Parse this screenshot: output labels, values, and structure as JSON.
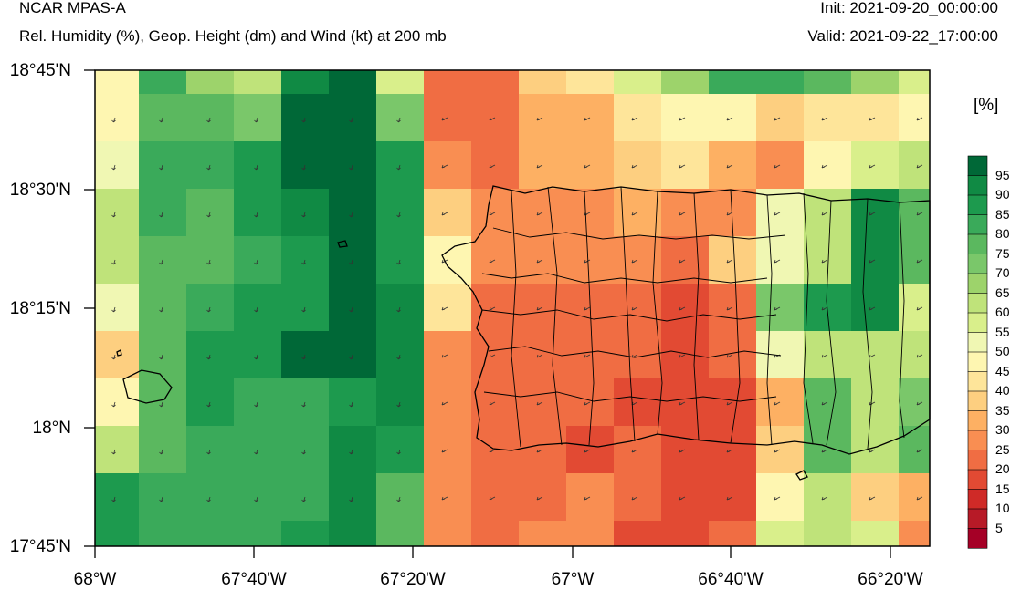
{
  "header": {
    "title": "NCAR MPAS-A",
    "subtitle": "Rel. Humidity (%), Geop. Height (dm) and Wind (kt) at 200 mb",
    "init": "Init: 2021-09-20_00:00:00",
    "valid": "Valid: 2021-09-22_17:00:00"
  },
  "axes": {
    "y_labels": [
      "18°45'N",
      "18°30'N",
      "18°15'N",
      "18°N",
      "17°45'N"
    ],
    "x_labels": [
      "68°W",
      "67°40'W",
      "67°20'W",
      "67°W",
      "66°40'W",
      "66°20'W"
    ]
  },
  "colorbar": {
    "unit": "[%]",
    "labels": [
      "95",
      "90",
      "85",
      "80",
      "75",
      "70",
      "65",
      "60",
      "55",
      "50",
      "45",
      "40",
      "35",
      "30",
      "25",
      "20",
      "15",
      "10",
      "5"
    ],
    "colors": [
      "#006837",
      "#108a44",
      "#1d9a4e",
      "#3aaa5a",
      "#5bb85f",
      "#7ac76a",
      "#9dd36b",
      "#bfe37a",
      "#d9ef8b",
      "#f0f7b3",
      "#fef6b1",
      "#fee59a",
      "#fdcf80",
      "#fdb063",
      "#f98e52",
      "#f06d43",
      "#e24a33",
      "#cf2a27",
      "#b71a27",
      "#a50026"
    ]
  },
  "chart_data": {
    "type": "heatmap",
    "title": "Rel. Humidity (%), Geop. Height (dm) and Wind (kt) at 200 mb",
    "x_range": [
      "68°W",
      "66°15'W"
    ],
    "y_range": [
      "17°45'N",
      "18°45'N"
    ],
    "rh_grid_rows_north_to_south": [
      [
        45,
        80,
        65,
        60,
        90,
        95,
        55,
        20,
        20,
        35,
        40,
        55,
        65,
        80,
        80,
        75,
        65,
        55
      ],
      [
        45,
        75,
        75,
        70,
        95,
        95,
        70,
        20,
        20,
        30,
        30,
        40,
        45,
        45,
        35,
        40,
        40,
        45
      ],
      [
        50,
        80,
        80,
        85,
        95,
        95,
        85,
        25,
        20,
        30,
        30,
        35,
        40,
        30,
        25,
        45,
        55,
        60
      ],
      [
        60,
        80,
        75,
        85,
        90,
        95,
        85,
        35,
        25,
        25,
        25,
        30,
        25,
        25,
        50,
        60,
        90,
        75
      ],
      [
        60,
        75,
        75,
        80,
        85,
        95,
        85,
        45,
        25,
        25,
        25,
        25,
        20,
        35,
        50,
        60,
        90,
        75
      ],
      [
        50,
        75,
        80,
        85,
        85,
        95,
        90,
        40,
        20,
        20,
        20,
        20,
        15,
        20,
        70,
        85,
        90,
        55
      ],
      [
        35,
        75,
        85,
        85,
        95,
        95,
        90,
        25,
        20,
        20,
        20,
        20,
        15,
        20,
        50,
        60,
        60,
        60
      ],
      [
        45,
        75,
        85,
        80,
        80,
        85,
        90,
        25,
        20,
        20,
        20,
        15,
        15,
        15,
        30,
        75,
        60,
        70
      ],
      [
        60,
        75,
        80,
        80,
        80,
        90,
        85,
        25,
        20,
        20,
        15,
        20,
        15,
        15,
        35,
        75,
        60,
        75
      ],
      [
        85,
        80,
        80,
        80,
        80,
        90,
        75,
        25,
        20,
        20,
        25,
        20,
        15,
        15,
        45,
        60,
        35,
        30
      ],
      [
        85,
        80,
        80,
        80,
        85,
        90,
        75,
        25,
        20,
        25,
        25,
        15,
        15,
        20,
        55,
        60,
        55,
        25
      ],
      [
        95,
        85,
        80,
        75,
        85,
        80,
        70,
        20,
        20,
        30,
        20,
        15,
        15,
        15,
        35,
        55,
        45,
        25
      ]
    ],
    "levels": [
      5,
      10,
      15,
      20,
      25,
      30,
      35,
      40,
      45,
      50,
      55,
      60,
      65,
      70,
      75,
      80,
      85,
      90,
      95
    ]
  }
}
